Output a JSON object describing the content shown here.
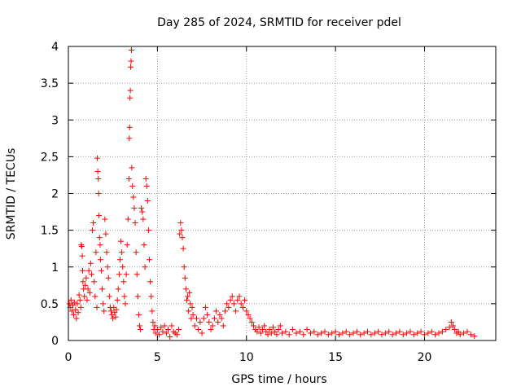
{
  "chart_data": {
    "type": "scatter",
    "title": "Day 285 of 2024, SRMTID for receiver pdel",
    "xlabel": "GPS time / hours",
    "ylabel": "SRMTID / TECUs",
    "xlim": [
      0,
      24
    ],
    "ylim": [
      0,
      4
    ],
    "x_ticks": [
      0,
      5,
      10,
      15,
      20
    ],
    "x_tick_labels": [
      "0",
      "5",
      "10",
      "15",
      "20"
    ],
    "y_ticks": [
      0,
      0.5,
      1,
      1.5,
      2,
      2.5,
      3,
      3.5,
      4
    ],
    "y_tick_labels": [
      "0",
      "0.5",
      "1",
      "1.5",
      "2",
      "2.5",
      "3",
      "3.5",
      "4"
    ],
    "grid": true,
    "marker": "plus",
    "color": "#ff0000",
    "series": [
      {
        "name": "pdel",
        "points": [
          [
            0.05,
            0.5
          ],
          [
            0.1,
            0.45
          ],
          [
            0.15,
            0.55
          ],
          [
            0.2,
            0.4
          ],
          [
            0.25,
            0.48
          ],
          [
            0.3,
            0.35
          ],
          [
            0.35,
            0.52
          ],
          [
            0.4,
            0.42
          ],
          [
            0.45,
            0.3
          ],
          [
            0.5,
            0.5
          ],
          [
            0.55,
            0.38
          ],
          [
            0.6,
            0.62
          ],
          [
            0.65,
            0.55
          ],
          [
            0.7,
            0.45
          ],
          [
            0.72,
            1.3
          ],
          [
            0.75,
            1.28
          ],
          [
            0.78,
            1.15
          ],
          [
            0.8,
            0.95
          ],
          [
            0.82,
            0.8
          ],
          [
            0.85,
            0.7
          ],
          [
            0.9,
            0.6
          ],
          [
            0.95,
            0.75
          ],
          [
            1.0,
            0.85
          ],
          [
            1.05,
            0.55
          ],
          [
            1.1,
            0.7
          ],
          [
            1.15,
            0.95
          ],
          [
            1.2,
            0.65
          ],
          [
            1.25,
            1.05
          ],
          [
            1.3,
            0.9
          ],
          [
            1.35,
            1.5
          ],
          [
            1.4,
            1.6
          ],
          [
            1.45,
            0.8
          ],
          [
            1.5,
            0.6
          ],
          [
            1.55,
            1.2
          ],
          [
            1.6,
            0.45
          ],
          [
            1.62,
            2.48
          ],
          [
            1.65,
            2.3
          ],
          [
            1.68,
            2.2
          ],
          [
            1.7,
            2.0
          ],
          [
            1.72,
            1.7
          ],
          [
            1.75,
            1.4
          ],
          [
            1.78,
            1.3
          ],
          [
            1.8,
            1.1
          ],
          [
            1.85,
            0.95
          ],
          [
            1.9,
            0.7
          ],
          [
            1.95,
            0.5
          ],
          [
            2.0,
            0.4
          ],
          [
            2.05,
            1.65
          ],
          [
            2.1,
            1.45
          ],
          [
            2.15,
            1.2
          ],
          [
            2.2,
            1.0
          ],
          [
            2.25,
            0.85
          ],
          [
            2.3,
            0.6
          ],
          [
            2.35,
            0.45
          ],
          [
            2.4,
            0.4
          ],
          [
            2.45,
            0.35
          ],
          [
            2.5,
            0.3
          ],
          [
            2.55,
            0.45
          ],
          [
            2.6,
            0.38
          ],
          [
            2.65,
            0.32
          ],
          [
            2.7,
            0.42
          ],
          [
            2.75,
            0.55
          ],
          [
            2.8,
            0.7
          ],
          [
            2.85,
            0.9
          ],
          [
            2.9,
            1.1
          ],
          [
            2.95,
            1.35
          ],
          [
            3.0,
            1.2
          ],
          [
            3.05,
            1.0
          ],
          [
            3.1,
            0.8
          ],
          [
            3.15,
            0.6
          ],
          [
            3.2,
            0.5
          ],
          [
            3.25,
            0.9
          ],
          [
            3.3,
            1.3
          ],
          [
            3.35,
            1.65
          ],
          [
            3.4,
            2.2
          ],
          [
            3.42,
            2.75
          ],
          [
            3.44,
            2.9
          ],
          [
            3.46,
            3.3
          ],
          [
            3.48,
            3.4
          ],
          [
            3.5,
            3.72
          ],
          [
            3.52,
            3.8
          ],
          [
            3.54,
            3.95
          ],
          [
            3.56,
            2.35
          ],
          [
            3.6,
            2.1
          ],
          [
            3.65,
            1.95
          ],
          [
            3.7,
            1.8
          ],
          [
            3.75,
            1.6
          ],
          [
            3.8,
            1.2
          ],
          [
            3.85,
            0.9
          ],
          [
            3.9,
            0.6
          ],
          [
            3.95,
            0.35
          ],
          [
            4.0,
            0.2
          ],
          [
            4.05,
            0.15
          ],
          [
            4.1,
            1.8
          ],
          [
            4.15,
            1.75
          ],
          [
            4.2,
            1.65
          ],
          [
            4.25,
            1.3
          ],
          [
            4.3,
            1.0
          ],
          [
            4.35,
            2.2
          ],
          [
            4.4,
            2.1
          ],
          [
            4.45,
            1.9
          ],
          [
            4.5,
            1.5
          ],
          [
            4.55,
            1.1
          ],
          [
            4.6,
            0.8
          ],
          [
            4.65,
            0.6
          ],
          [
            4.7,
            0.4
          ],
          [
            4.75,
            0.25
          ],
          [
            4.8,
            0.15
          ],
          [
            4.85,
            0.2
          ],
          [
            4.9,
            0.1
          ],
          [
            5.0,
            0.15
          ],
          [
            5.1,
            0.08
          ],
          [
            5.2,
            0.18
          ],
          [
            5.3,
            0.12
          ],
          [
            5.4,
            0.2
          ],
          [
            5.5,
            0.1
          ],
          [
            5.6,
            0.15
          ],
          [
            5.7,
            0.05
          ],
          [
            5.8,
            0.2
          ],
          [
            5.9,
            0.12
          ],
          [
            6.0,
            0.1
          ],
          [
            6.1,
            0.08
          ],
          [
            6.2,
            0.15
          ],
          [
            6.25,
            1.45
          ],
          [
            6.3,
            1.6
          ],
          [
            6.35,
            1.5
          ],
          [
            6.4,
            1.4
          ],
          [
            6.45,
            1.25
          ],
          [
            6.5,
            1.0
          ],
          [
            6.55,
            0.85
          ],
          [
            6.6,
            0.7
          ],
          [
            6.65,
            0.55
          ],
          [
            6.7,
            0.6
          ],
          [
            6.75,
            0.4
          ],
          [
            6.8,
            0.65
          ],
          [
            6.85,
            0.5
          ],
          [
            6.9,
            0.3
          ],
          [
            6.95,
            0.45
          ],
          [
            7.0,
            0.35
          ],
          [
            7.1,
            0.2
          ],
          [
            7.2,
            0.3
          ],
          [
            7.3,
            0.15
          ],
          [
            7.4,
            0.25
          ],
          [
            7.5,
            0.1
          ],
          [
            7.6,
            0.3
          ],
          [
            7.7,
            0.45
          ],
          [
            7.8,
            0.35
          ],
          [
            7.9,
            0.25
          ],
          [
            8.0,
            0.15
          ],
          [
            8.1,
            0.2
          ],
          [
            8.2,
            0.3
          ],
          [
            8.3,
            0.4
          ],
          [
            8.4,
            0.25
          ],
          [
            8.5,
            0.35
          ],
          [
            8.6,
            0.3
          ],
          [
            8.7,
            0.2
          ],
          [
            8.8,
            0.4
          ],
          [
            8.9,
            0.5
          ],
          [
            9.0,
            0.45
          ],
          [
            9.1,
            0.55
          ],
          [
            9.2,
            0.6
          ],
          [
            9.3,
            0.5
          ],
          [
            9.4,
            0.4
          ],
          [
            9.5,
            0.55
          ],
          [
            9.6,
            0.6
          ],
          [
            9.7,
            0.5
          ],
          [
            9.8,
            0.45
          ],
          [
            9.9,
            0.55
          ],
          [
            10.0,
            0.4
          ],
          [
            10.1,
            0.35
          ],
          [
            10.2,
            0.3
          ],
          [
            10.3,
            0.25
          ],
          [
            10.4,
            0.2
          ],
          [
            10.5,
            0.15
          ],
          [
            10.6,
            0.12
          ],
          [
            10.7,
            0.18
          ],
          [
            10.8,
            0.1
          ],
          [
            10.9,
            0.15
          ],
          [
            11.0,
            0.2
          ],
          [
            11.1,
            0.12
          ],
          [
            11.2,
            0.08
          ],
          [
            11.3,
            0.15
          ],
          [
            11.4,
            0.1
          ],
          [
            11.5,
            0.18
          ],
          [
            11.6,
            0.12
          ],
          [
            11.7,
            0.08
          ],
          [
            11.8,
            0.15
          ],
          [
            11.9,
            0.2
          ],
          [
            12.0,
            0.1
          ],
          [
            12.2,
            0.12
          ],
          [
            12.4,
            0.08
          ],
          [
            12.6,
            0.15
          ],
          [
            12.8,
            0.1
          ],
          [
            13.0,
            0.12
          ],
          [
            13.2,
            0.08
          ],
          [
            13.4,
            0.15
          ],
          [
            13.6,
            0.1
          ],
          [
            13.8,
            0.12
          ],
          [
            14.0,
            0.08
          ],
          [
            14.2,
            0.1
          ],
          [
            14.4,
            0.12
          ],
          [
            14.6,
            0.08
          ],
          [
            14.8,
            0.1
          ],
          [
            15.0,
            0.12
          ],
          [
            15.2,
            0.08
          ],
          [
            15.4,
            0.1
          ],
          [
            15.6,
            0.12
          ],
          [
            15.8,
            0.08
          ],
          [
            16.0,
            0.1
          ],
          [
            16.2,
            0.12
          ],
          [
            16.4,
            0.08
          ],
          [
            16.6,
            0.1
          ],
          [
            16.8,
            0.12
          ],
          [
            17.0,
            0.08
          ],
          [
            17.2,
            0.1
          ],
          [
            17.4,
            0.12
          ],
          [
            17.6,
            0.08
          ],
          [
            17.8,
            0.1
          ],
          [
            18.0,
            0.12
          ],
          [
            18.2,
            0.08
          ],
          [
            18.4,
            0.1
          ],
          [
            18.6,
            0.12
          ],
          [
            18.8,
            0.08
          ],
          [
            19.0,
            0.1
          ],
          [
            19.2,
            0.12
          ],
          [
            19.4,
            0.08
          ],
          [
            19.6,
            0.1
          ],
          [
            19.8,
            0.12
          ],
          [
            20.0,
            0.08
          ],
          [
            20.2,
            0.1
          ],
          [
            20.4,
            0.12
          ],
          [
            20.6,
            0.08
          ],
          [
            20.8,
            0.1
          ],
          [
            21.0,
            0.12
          ],
          [
            21.2,
            0.15
          ],
          [
            21.4,
            0.18
          ],
          [
            21.5,
            0.25
          ],
          [
            21.6,
            0.2
          ],
          [
            21.7,
            0.15
          ],
          [
            21.8,
            0.1
          ],
          [
            21.9,
            0.12
          ],
          [
            22.0,
            0.08
          ],
          [
            22.2,
            0.1
          ],
          [
            22.4,
            0.12
          ],
          [
            22.6,
            0.08
          ],
          [
            22.8,
            0.06
          ]
        ]
      }
    ]
  }
}
